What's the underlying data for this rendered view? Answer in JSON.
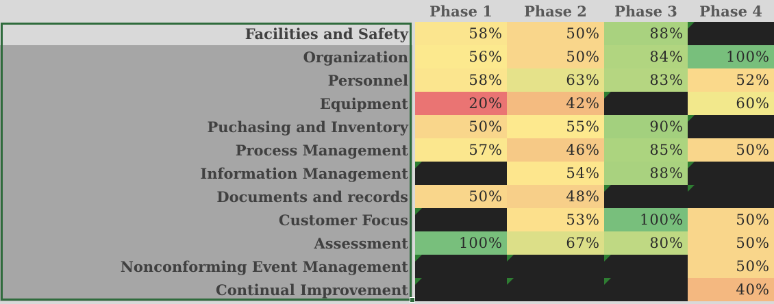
{
  "headers": [
    "Phase 1",
    "Phase 2",
    "Phase 3",
    "Phase 4"
  ],
  "rows": [
    {
      "label": "Facilities and Safety",
      "values": [
        "58%",
        "50%",
        "88%",
        ""
      ],
      "colors": [
        "#fbe58e",
        "#f9d68b",
        "#a9d27f",
        null
      ]
    },
    {
      "label": "Organization",
      "values": [
        "56%",
        "50%",
        "84%",
        "100%"
      ],
      "colors": [
        "#fce98e",
        "#f9d68b",
        "#b1d580",
        "#78bf7c"
      ]
    },
    {
      "label": "Personnel",
      "values": [
        "58%",
        "63%",
        "83%",
        "52%"
      ],
      "colors": [
        "#fbe58e",
        "#e5e28a",
        "#b5d681",
        "#fad98b"
      ]
    },
    {
      "label": "Equipment",
      "values": [
        "20%",
        "42%",
        "",
        "60%"
      ],
      "colors": [
        "#ea7473",
        "#f4bb80",
        null,
        "#f2e88c"
      ]
    },
    {
      "label": "Puchasing and Inventory",
      "values": [
        "50%",
        "55%",
        "90%",
        ""
      ],
      "colors": [
        "#f9d68b",
        "#fde98e",
        "#a3d07e",
        null
      ]
    },
    {
      "label": "Process Management",
      "values": [
        "57%",
        "46%",
        "85%",
        "50%"
      ],
      "colors": [
        "#fbe78e",
        "#f6c986",
        "#acd47f",
        "#f9d68b"
      ]
    },
    {
      "label": "Information Management",
      "values": [
        "",
        "54%",
        "88%",
        ""
      ],
      "colors": [
        null,
        "#fde68d",
        "#a9d27f",
        null
      ]
    },
    {
      "label": "Documents and records",
      "values": [
        "50%",
        "48%",
        "",
        ""
      ],
      "colors": [
        "#f9d68b",
        "#f7cf89",
        null,
        null
      ]
    },
    {
      "label": "Customer Focus",
      "values": [
        "",
        "53%",
        "100%",
        "50%"
      ],
      "colors": [
        null,
        "#fce08c",
        "#78bf7c",
        "#f9d68b"
      ]
    },
    {
      "label": "Assessment",
      "values": [
        "100%",
        "67%",
        "80%",
        "50%"
      ],
      "colors": [
        "#78bf7c",
        "#dcdf88",
        "#bfd983",
        "#f9d68b"
      ]
    },
    {
      "label": "Nonconforming Event Management",
      "values": [
        "",
        "",
        "",
        "50%"
      ],
      "colors": [
        null,
        null,
        null,
        "#f9d68b"
      ]
    },
    {
      "label": "Continual Improvement",
      "values": [
        "",
        "",
        "",
        "40%"
      ],
      "colors": [
        null,
        null,
        null,
        "#f4b880"
      ]
    }
  ],
  "active_row": 0
}
